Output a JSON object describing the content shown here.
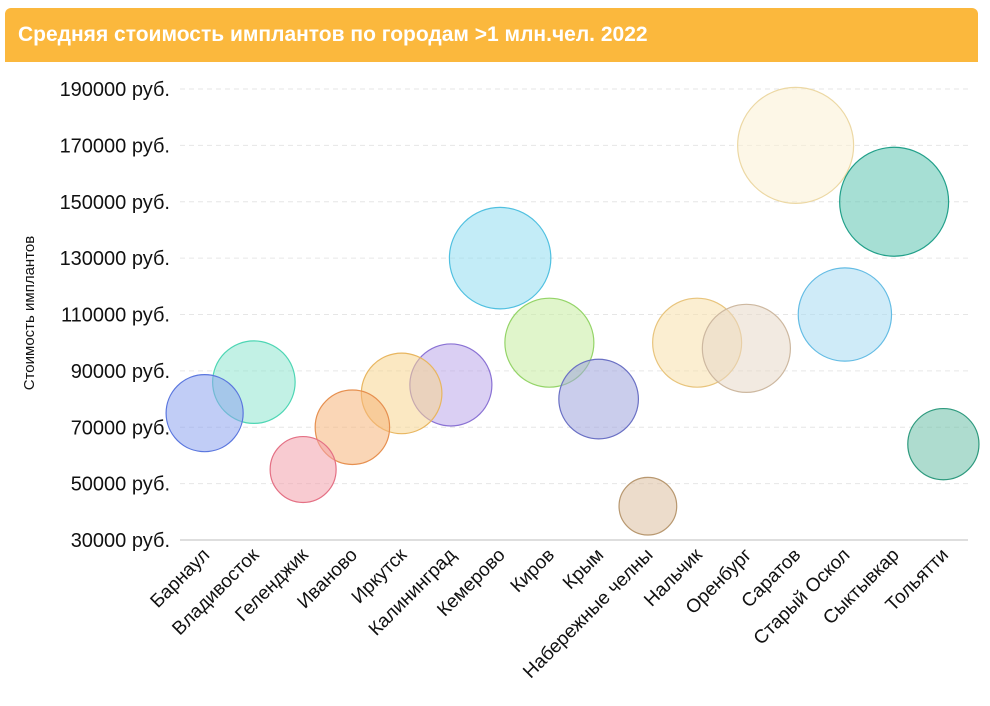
{
  "chart_data": {
    "type": "scatter",
    "title": "Средняя стоимость имплантов по городам >1 млн.чел. 2022",
    "xlabel": "",
    "ylabel": "Стоимость имплантов",
    "ylim": [
      30000,
      190000
    ],
    "y_ticks": [
      "30000 руб.",
      "50000 руб.",
      "70000 руб.",
      "90000 руб.",
      "110000 руб.",
      "130000 руб.",
      "150000 руб.",
      "170000 руб.",
      "190000 руб."
    ],
    "y_tick_values": [
      30000,
      50000,
      70000,
      90000,
      110000,
      130000,
      150000,
      170000,
      190000
    ],
    "grid": true,
    "categories": [
      "Барнаул",
      "Владивосток",
      "Геленджик",
      "Иваново",
      "Иркутск",
      "Калининград",
      "Кемерово",
      "Киров",
      "Крым",
      "Набережные челны",
      "Нальчик",
      "Оренбург",
      "Саратов",
      "Старый Оскол",
      "Сыктывкар",
      "Тольятти"
    ],
    "values": [
      75000,
      86000,
      55000,
      70000,
      82000,
      85000,
      130000,
      100000,
      80000,
      42000,
      100000,
      98000,
      170000,
      110000,
      150000,
      64000
    ],
    "sizes": [
      75000,
      86000,
      55000,
      70000,
      82000,
      85000,
      130000,
      100000,
      80000,
      42000,
      100000,
      98000,
      170000,
      110000,
      150000,
      64000
    ],
    "colors": [
      "#8ea4ee",
      "#8fe6d0",
      "#f2a0ac",
      "#f6b47a",
      "#f8d690",
      "#bba7ea",
      "#92dcf0",
      "#c6eca0",
      "#9ea4dc",
      "#dcc0a0",
      "#f8e0ac",
      "#e8d8c8",
      "#fcf0d4",
      "#a8daf2",
      "#5cc4b0",
      "#6cc0a8"
    ],
    "strokes": [
      "#5a76de",
      "#4ed6b4",
      "#e47084",
      "#e69050",
      "#e8b660",
      "#8a72d4",
      "#50c0e0",
      "#94d468",
      "#6a70c4",
      "#b89870",
      "#e8c47c",
      "#cdb8a0",
      "#ecd8a4",
      "#64bce4",
      "#22a08a",
      "#2e9a7e"
    ]
  }
}
